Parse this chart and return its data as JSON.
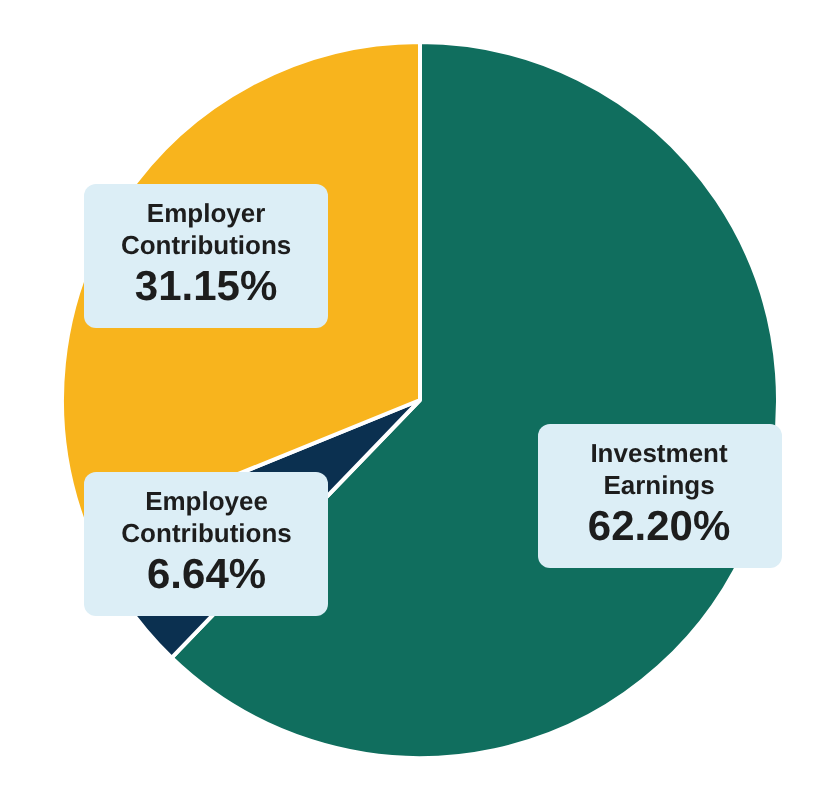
{
  "chart_data": {
    "type": "pie",
    "categories": [
      "Investment Earnings",
      "Employee Contributions",
      "Employer Contributions"
    ],
    "values": [
      62.2,
      6.64,
      31.15
    ],
    "value_labels": [
      "62.20%",
      "6.64%",
      "31.15%"
    ],
    "colors": [
      "#106e5e",
      "#0b3050",
      "#f8b41d"
    ],
    "legend": false
  }
}
